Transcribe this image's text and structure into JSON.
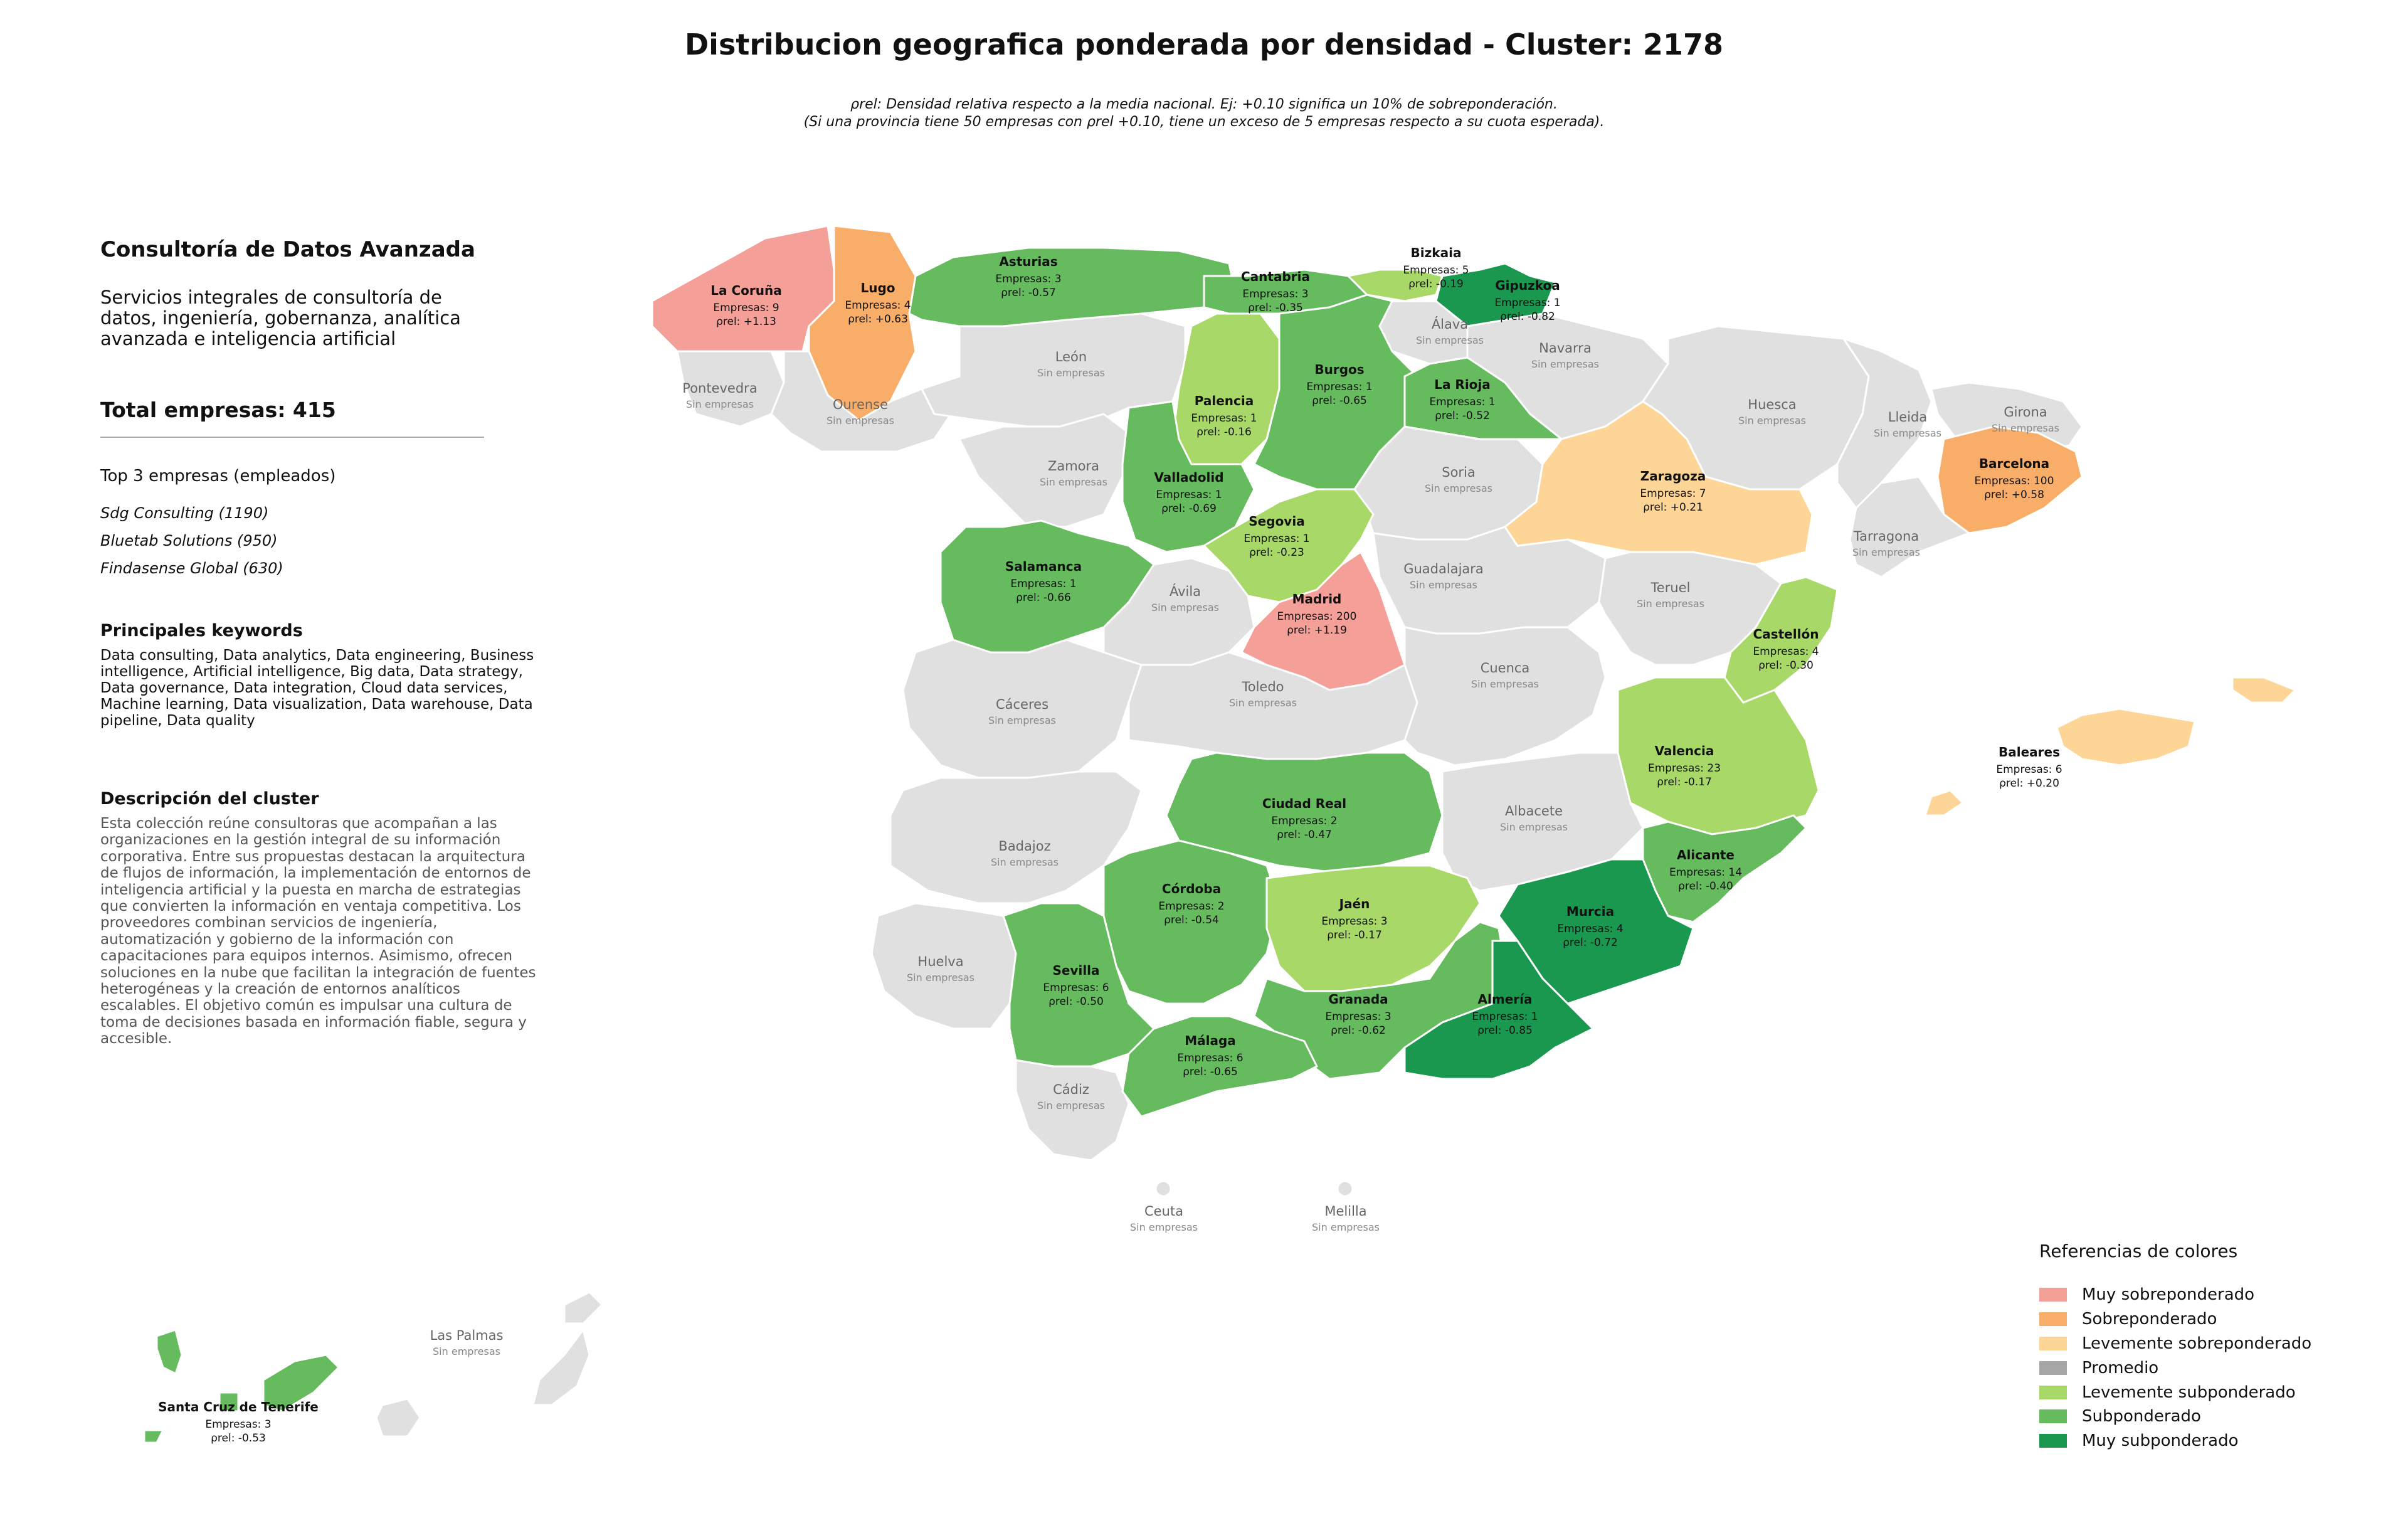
{
  "title": "Distribucion geografica ponderada por densidad - Cluster: 2178",
  "subtitle_line1": "ρrel: Densidad relativa respecto a la media nacional. Ej: +0.10 significa un 10% de sobreponderación.",
  "subtitle_line2": "(Si una provincia tiene 50 empresas con ρrel +0.10, tiene un exceso de 5 empresas respecto a su cuota esperada).",
  "sidebar": {
    "heading": "Consultoría de Datos Avanzada",
    "description": "Servicios integrales de consultoría de datos, ingeniería, gobernanza, analítica avanzada e inteligencia artificial",
    "total": "Total empresas: 415",
    "top_label": "Top 3 empresas (empleados)",
    "top_companies": [
      "Sdg Consulting (1190)",
      "Bluetab Solutions (950)",
      "Findasense Global (630)"
    ],
    "keywords_heading": "Principales keywords",
    "keywords_text": "Data consulting, Data analytics, Data engineering, Business intelligence, Artificial intelligence, Big data, Data strategy, Data governance, Data integration, Cloud data services, Machine learning, Data visualization, Data warehouse, Data pipeline, Data quality",
    "cluster_heading": "Descripción del cluster",
    "cluster_text": "Esta colección reúne consultoras que acompañan a las organizaciones en la gestión integral de su información corporativa. Entre sus propuestas destacan la arquitectura de flujos de información, la implementación de entornos de inteligencia artificial y la puesta en marcha de estrategias que convierten la información en ventaja competitiva. Los proveedores combinan servicios de ingeniería, automatización y gobierno de la información con capacitaciones para equipos internos. Asimismo, ofrecen soluciones en la nube que facilitan la integración de fuentes heterogéneas y la creación de entornos analíticos escalables. El objetivo común es impulsar una cultura de toma de decisiones basada en información fiable, segura y accesible."
  },
  "colors": {
    "muy_sobre": "#f4a098",
    "sobre": "#f8ad68",
    "lev_sobre": "#fdd597",
    "promedio": "#a6a6a6",
    "lev_sub": "#a8d868",
    "sub": "#65bb5e",
    "muy_sub": "#1a9850",
    "none": "#e0e0e0"
  },
  "legend": {
    "title": "Referencias de colores",
    "items": [
      {
        "label": "Muy sobreponderado",
        "color": "#f4a098"
      },
      {
        "label": "Sobreponderado",
        "color": "#f8ad68"
      },
      {
        "label": "Levemente sobreponderado",
        "color": "#fdd597"
      },
      {
        "label": "Promedio",
        "color": "#a6a6a6"
      },
      {
        "label": "Levemente subponderado",
        "color": "#a8d868"
      },
      {
        "label": "Subponderado",
        "color": "#65bb5e"
      },
      {
        "label": "Muy subponderado",
        "color": "#1a9850"
      }
    ]
  },
  "empty_label": "Sin empresas",
  "companies_prefix": "Empresas: ",
  "rho_prefix": "ρrel: ",
  "provinces_with_data": [
    {
      "name": "La Coruña",
      "companies": 9,
      "rho": "+1.13",
      "category": "muy_sobre"
    },
    {
      "name": "Lugo",
      "companies": 4,
      "rho": "+0.63",
      "category": "sobre"
    },
    {
      "name": "Asturias",
      "companies": 3,
      "rho": "-0.57",
      "category": "sub"
    },
    {
      "name": "Cantabria",
      "companies": 3,
      "rho": "-0.35",
      "category": "sub"
    },
    {
      "name": "Bizkaia",
      "companies": 5,
      "rho": "-0.19",
      "category": "lev_sub"
    },
    {
      "name": "Gipuzkoa",
      "companies": 1,
      "rho": "-0.82",
      "category": "muy_sub"
    },
    {
      "name": "Burgos",
      "companies": 1,
      "rho": "-0.65",
      "category": "sub"
    },
    {
      "name": "La Rioja",
      "companies": 1,
      "rho": "-0.52",
      "category": "sub"
    },
    {
      "name": "Palencia",
      "companies": 1,
      "rho": "-0.16",
      "category": "lev_sub"
    },
    {
      "name": "Valladolid",
      "companies": 1,
      "rho": "-0.69",
      "category": "sub"
    },
    {
      "name": "Segovia",
      "companies": 1,
      "rho": "-0.23",
      "category": "lev_sub"
    },
    {
      "name": "Salamanca",
      "companies": 1,
      "rho": "-0.66",
      "category": "sub"
    },
    {
      "name": "Madrid",
      "companies": 200,
      "rho": "+1.19",
      "category": "muy_sobre"
    },
    {
      "name": "Zaragoza",
      "companies": 7,
      "rho": "+0.21",
      "category": "lev_sobre"
    },
    {
      "name": "Barcelona",
      "companies": 100,
      "rho": "+0.58",
      "category": "sobre"
    },
    {
      "name": "Castellón",
      "companies": 4,
      "rho": "-0.30",
      "category": "lev_sub"
    },
    {
      "name": "Valencia",
      "companies": 23,
      "rho": "-0.17",
      "category": "lev_sub"
    },
    {
      "name": "Baleares",
      "companies": 6,
      "rho": "+0.20",
      "category": "lev_sobre"
    },
    {
      "name": "Alicante",
      "companies": 14,
      "rho": "-0.40",
      "category": "sub"
    },
    {
      "name": "Murcia",
      "companies": 4,
      "rho": "-0.72",
      "category": "muy_sub"
    },
    {
      "name": "Ciudad Real",
      "companies": 2,
      "rho": "-0.47",
      "category": "sub"
    },
    {
      "name": "Córdoba",
      "companies": 2,
      "rho": "-0.54",
      "category": "sub"
    },
    {
      "name": "Jaén",
      "companies": 3,
      "rho": "-0.17",
      "category": "lev_sub"
    },
    {
      "name": "Sevilla",
      "companies": 6,
      "rho": "-0.50",
      "category": "sub"
    },
    {
      "name": "Granada",
      "companies": 3,
      "rho": "-0.62",
      "category": "sub"
    },
    {
      "name": "Almería",
      "companies": 1,
      "rho": "-0.85",
      "category": "muy_sub"
    },
    {
      "name": "Málaga",
      "companies": 6,
      "rho": "-0.65",
      "category": "sub"
    },
    {
      "name": "Santa Cruz de Tenerife",
      "companies": 3,
      "rho": "-0.53",
      "category": "sub"
    }
  ],
  "provinces_empty": [
    "Pontevedra",
    "Ourense",
    "León",
    "Zamora",
    "Álava",
    "Navarra",
    "Huesca",
    "Lleida",
    "Girona",
    "Soria",
    "Tarragona",
    "Guadalajara",
    "Teruel",
    "Ávila",
    "Cuenca",
    "Toledo",
    "Cáceres",
    "Badajoz",
    "Albacete",
    "Huelva",
    "Cádiz",
    "Ceuta",
    "Melilla",
    "Las Palmas"
  ]
}
